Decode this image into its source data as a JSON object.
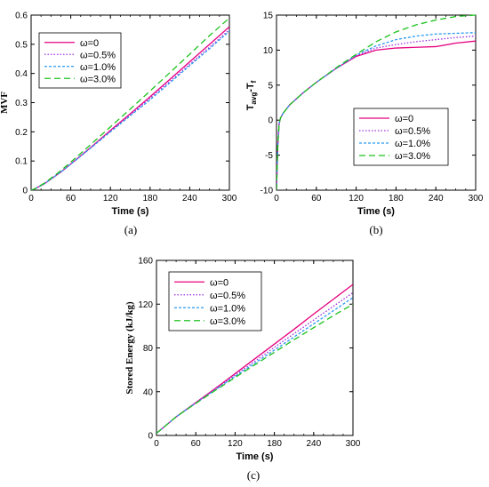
{
  "colors": {
    "w0": "#e6007e",
    "w05": "#9b30e0",
    "w10": "#2a9bf0",
    "w30": "#1fc21f"
  },
  "chart_data": [
    {
      "id": "a",
      "type": "line",
      "panel_label": "(a)",
      "xlabel": "Time (s)",
      "ylabel": "MVF",
      "xlim": [
        0,
        300
      ],
      "ylim": [
        0,
        0.6
      ],
      "xticks": [
        "0",
        "60",
        "120",
        "180",
        "240",
        "300"
      ],
      "yticks": [
        "0",
        "0.1",
        "0.2",
        "0.3",
        "0.4",
        "0.5",
        "0.6"
      ],
      "grid": false,
      "legend_position": "top-left",
      "x": [
        0,
        5,
        10,
        20,
        30,
        45,
        60,
        90,
        120,
        150,
        180,
        210,
        240,
        270,
        300
      ],
      "series": [
        {
          "name": "ω=0",
          "style": "solid",
          "color_key": "w0",
          "values": [
            0,
            0.004,
            0.01,
            0.022,
            0.038,
            0.062,
            0.09,
            0.146,
            0.205,
            0.262,
            0.32,
            0.38,
            0.44,
            0.5,
            0.56
          ]
        },
        {
          "name": "ω=0.5%",
          "style": "dotted",
          "color_key": "w05",
          "values": [
            0,
            0.004,
            0.01,
            0.022,
            0.038,
            0.062,
            0.09,
            0.145,
            0.202,
            0.258,
            0.315,
            0.373,
            0.432,
            0.49,
            0.55
          ]
        },
        {
          "name": "ω=1.0%",
          "style": "dashed-short",
          "color_key": "w10",
          "values": [
            0,
            0.004,
            0.01,
            0.022,
            0.038,
            0.062,
            0.089,
            0.144,
            0.2,
            0.255,
            0.31,
            0.368,
            0.427,
            0.485,
            0.545
          ]
        },
        {
          "name": "ω=3.0%",
          "style": "dashed-long",
          "color_key": "w30",
          "values": [
            0,
            0.004,
            0.011,
            0.024,
            0.041,
            0.067,
            0.096,
            0.156,
            0.217,
            0.278,
            0.34,
            0.403,
            0.466,
            0.53,
            0.59
          ]
        }
      ]
    },
    {
      "id": "b",
      "type": "line",
      "panel_label": "(b)",
      "xlabel": "Time (s)",
      "ylabel_main": "T",
      "ylabel_sub1": "avg",
      "ylabel_mid": "-T",
      "ylabel_sub2": "f",
      "xlim": [
        0,
        300
      ],
      "ylim": [
        -10,
        15
      ],
      "xticks": [
        "0",
        "60",
        "120",
        "180",
        "240",
        "300"
      ],
      "yticks": [
        "-10",
        "-5",
        "0",
        "5",
        "10",
        "15"
      ],
      "grid": false,
      "legend_position": "bottom-right",
      "x": [
        0,
        2,
        4,
        6,
        10,
        20,
        40,
        60,
        90,
        120,
        150,
        180,
        210,
        240,
        270,
        300
      ],
      "series": [
        {
          "name": "ω=0",
          "style": "solid",
          "color_key": "w0",
          "values": [
            -10,
            -3.5,
            -0.5,
            0.3,
            1.0,
            2.2,
            3.9,
            5.4,
            7.4,
            9.1,
            10.0,
            10.3,
            10.4,
            10.5,
            11.0,
            11.3
          ]
        },
        {
          "name": "ω=0.5%",
          "style": "dotted",
          "color_key": "w05",
          "values": [
            -10,
            -3.5,
            -0.5,
            0.3,
            1.0,
            2.2,
            3.9,
            5.4,
            7.4,
            9.2,
            10.3,
            10.8,
            11.2,
            11.5,
            11.8,
            12.0
          ]
        },
        {
          "name": "ω=1.0%",
          "style": "dashed-short",
          "color_key": "w10",
          "values": [
            -10,
            -3.5,
            -0.5,
            0.3,
            1.0,
            2.2,
            3.9,
            5.4,
            7.4,
            9.3,
            10.6,
            11.5,
            12.0,
            12.3,
            12.4,
            12.5
          ]
        },
        {
          "name": "ω=3.0%",
          "style": "dashed-long",
          "color_key": "w30",
          "values": [
            -10,
            -3.5,
            -0.5,
            0.3,
            1.0,
            2.2,
            3.9,
            5.4,
            7.5,
            9.4,
            11.2,
            12.6,
            13.6,
            14.3,
            14.8,
            15.0
          ]
        }
      ]
    },
    {
      "id": "c",
      "type": "line",
      "panel_label": "(c)",
      "xlabel": "Time (s)",
      "ylabel": "Stored Energy (kJ/kg)",
      "xlim": [
        0,
        300
      ],
      "ylim": [
        0,
        160
      ],
      "xticks": [
        "0",
        "60",
        "120",
        "180",
        "240",
        "300"
      ],
      "yticks": [
        "0",
        "40",
        "80",
        "120",
        "160"
      ],
      "grid": false,
      "legend_position": "top-left",
      "x": [
        0,
        10,
        20,
        30,
        45,
        60,
        90,
        120,
        150,
        180,
        210,
        240,
        270,
        300
      ],
      "series": [
        {
          "name": "ω=0",
          "style": "solid",
          "color_key": "w0",
          "values": [
            2,
            7,
            12,
            17,
            23.5,
            30,
            43,
            56.5,
            70,
            83.5,
            97,
            111,
            124.5,
            138
          ]
        },
        {
          "name": "ω=0.5%",
          "style": "dotted",
          "color_key": "w05",
          "values": [
            2,
            7,
            12,
            17,
            23.5,
            29.8,
            42.3,
            55,
            67.7,
            80.5,
            93,
            105.5,
            118,
            130.5
          ]
        },
        {
          "name": "ω=1.0%",
          "style": "dashed-short",
          "color_key": "w10",
          "values": [
            2,
            7,
            12,
            17,
            23.3,
            29.5,
            41.8,
            54,
            66,
            78,
            90,
            102,
            114,
            126
          ]
        },
        {
          "name": "ω=3.0%",
          "style": "dashed-long",
          "color_key": "w30",
          "values": [
            2,
            7,
            12,
            17,
            23.2,
            29.3,
            41.2,
            53,
            64.5,
            76,
            87.5,
            98.5,
            109.5,
            120
          ]
        }
      ]
    }
  ]
}
